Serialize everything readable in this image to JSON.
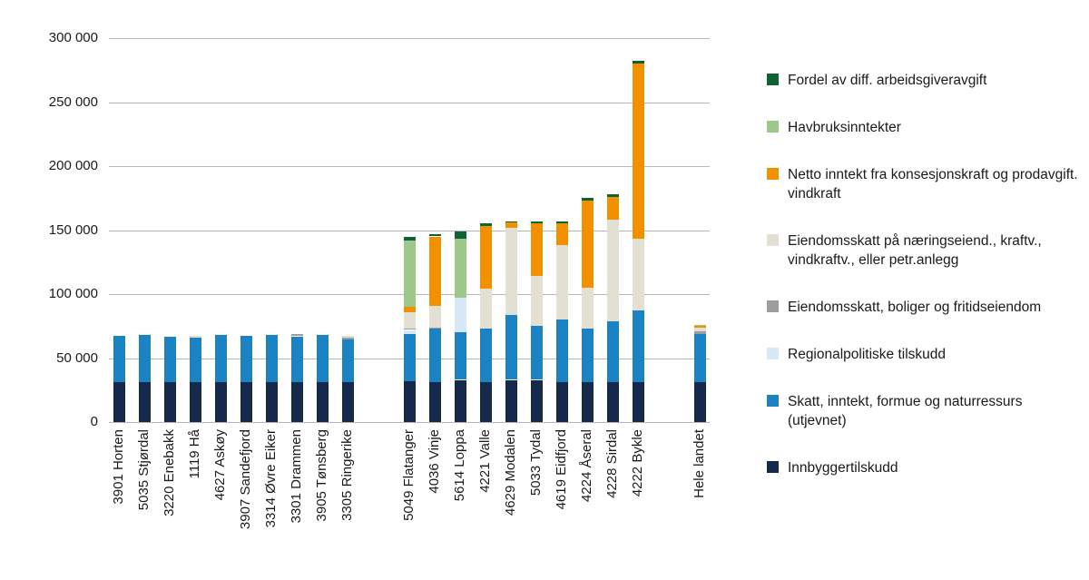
{
  "chart_data": {
    "type": "bar",
    "stacked": true,
    "title": "",
    "xlabel": "",
    "ylabel": "",
    "ylim": [
      0,
      300000
    ],
    "ytick_step": 50000,
    "ytick_labels": [
      "0",
      "50 000",
      "100 000",
      "150 000",
      "200 000",
      "250 000",
      "300 000"
    ],
    "grid": true,
    "legend_position": "right",
    "categories": [
      "3901 Horten",
      "5035 Stjørdal",
      "3220 Enebakk",
      "1119 Hå",
      "4627 Askøy",
      "3907 Sandefjord",
      "3314 Øvre Eiker",
      "3301 Drammen",
      "3905 Tønsberg",
      "3305 Ringerike",
      "5049 Flatanger",
      "4036 Vinje",
      "5614 Loppa",
      "4221 Valle",
      "4629 Modalen",
      "5033 Tydal",
      "4619 Eidfjord",
      "4224 Åseral",
      "4228 Sirdal",
      "4222 Bykle",
      "Hele landet"
    ],
    "group_breaks": [
      10,
      20
    ],
    "series": [
      {
        "name": "Innbyggertilskudd",
        "color": "#14294b",
        "values": [
          31000,
          31000,
          31000,
          31000,
          31000,
          31000,
          31000,
          31000,
          31000,
          31000,
          32000,
          31000,
          33000,
          31000,
          33000,
          33000,
          31000,
          31000,
          31000,
          31000,
          31000
        ]
      },
      {
        "name": "Skatt, inntekt, formue og naturressurs (utjevnet)",
        "color": "#1b83c4",
        "values": [
          36500,
          37000,
          36000,
          35000,
          37000,
          36500,
          37000,
          36000,
          37000,
          33500,
          37000,
          42000,
          37000,
          42000,
          51000,
          42000,
          49000,
          42000,
          48000,
          56000,
          38000
        ]
      },
      {
        "name": "Regionalpolitiske tilskudd",
        "color": "#d7e9f8",
        "values": [
          0,
          0,
          0,
          0,
          0,
          0,
          0,
          0,
          0,
          0,
          3000,
          0,
          27000,
          0,
          0,
          0,
          0,
          0,
          0,
          0,
          0
        ]
      },
      {
        "name": "Eiendomsskatt, boliger og fritidseiendom",
        "color": "#9d9d9c",
        "values": [
          0,
          0,
          0,
          0,
          0,
          0,
          0,
          1500,
          0,
          1500,
          1000,
          1000,
          0,
          0,
          0,
          0,
          0,
          0,
          0,
          0,
          2000
        ]
      },
      {
        "name": "Eiendomsskatt på næringseiend., kraftv., vindkraftv., eller petr.anlegg",
        "color": "#e2e0d3",
        "values": [
          0,
          0,
          0,
          1500,
          0,
          0,
          0,
          0,
          0,
          1500,
          13000,
          17000,
          0,
          31000,
          68000,
          39000,
          58000,
          32000,
          79000,
          56000,
          3000
        ]
      },
      {
        "name": "Netto inntekt fra konsesjonskraft og prodavgift. vindkraft",
        "color": "#f39000",
        "values": [
          0,
          0,
          0,
          0,
          0,
          0,
          0,
          0,
          0,
          0,
          4000,
          54000,
          0,
          49000,
          4000,
          41000,
          17000,
          68000,
          18000,
          137000,
          1000
        ]
      },
      {
        "name": "Havbruksinntekter",
        "color": "#9cc88a",
        "values": [
          0,
          0,
          0,
          0,
          0,
          0,
          0,
          0,
          0,
          0,
          52000,
          0,
          46000,
          0,
          0,
          0,
          0,
          0,
          0,
          0,
          1000
        ]
      },
      {
        "name": "Fordel av diff. arbeidsgiveravgift",
        "color": "#0e6336",
        "values": [
          0,
          0,
          0,
          0,
          0,
          0,
          0,
          0,
          0,
          0,
          3000,
          2000,
          6000,
          2000,
          1000,
          2000,
          2000,
          2000,
          2000,
          2000,
          0
        ]
      }
    ]
  }
}
